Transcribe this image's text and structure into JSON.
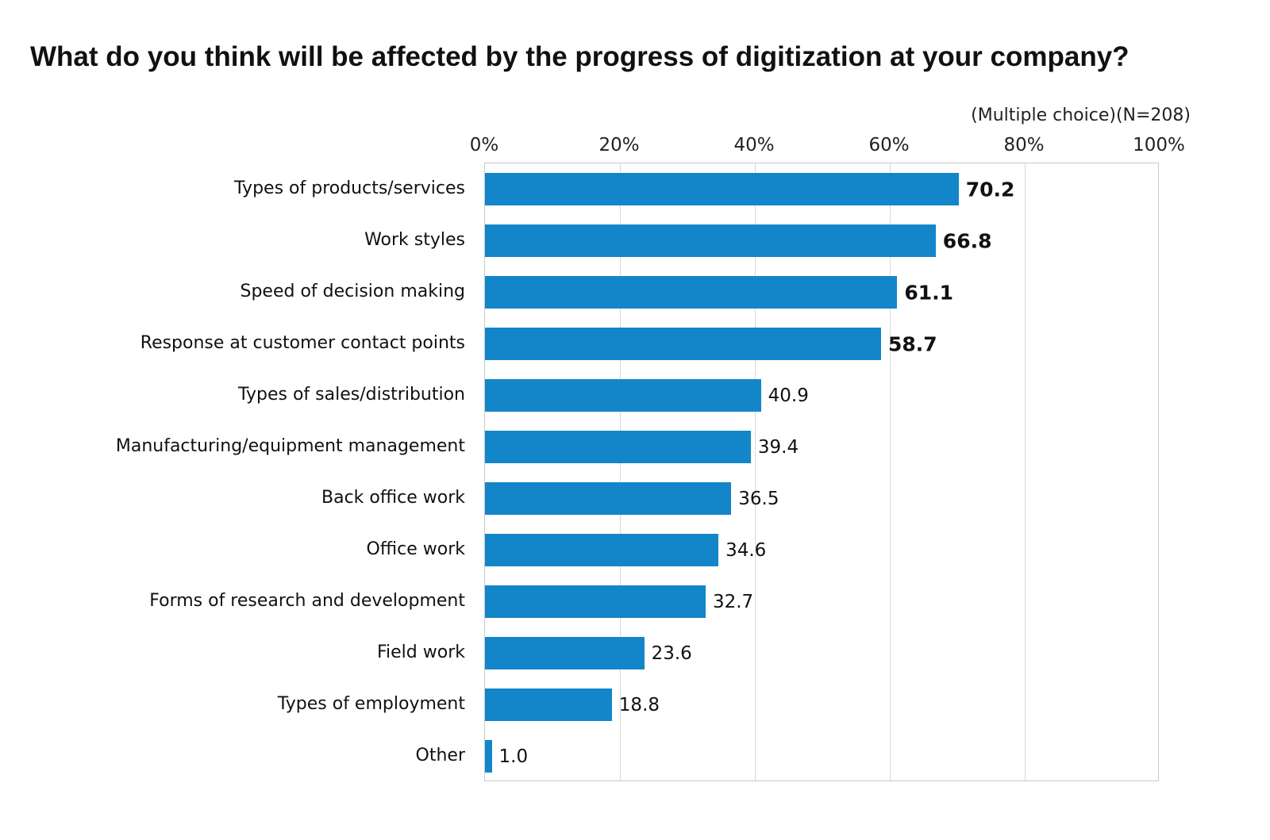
{
  "chart_data": {
    "type": "bar",
    "orientation": "horizontal",
    "title": "What do you think will be affected by the progress of digitization at your company?",
    "note": "(Multiple choice)(N=208)",
    "categories": [
      "Types of products/services",
      "Work styles",
      "Speed of decision making",
      "Response at customer contact points",
      "Types of sales/distribution",
      "Manufacturing/equipment management",
      "Back office work",
      "Office work",
      "Forms of research and development",
      "Field work",
      "Types of employment",
      "Other"
    ],
    "values": [
      70.2,
      66.8,
      61.1,
      58.7,
      40.9,
      39.4,
      36.5,
      34.6,
      32.7,
      23.6,
      18.8,
      1.0
    ],
    "value_labels": [
      "70.2",
      "66.8",
      "61.1",
      "58.7",
      "40.9",
      "39.4",
      "36.5",
      "34.6",
      "32.7",
      "23.6",
      "18.8",
      "1.0"
    ],
    "value_label_bold": [
      true,
      true,
      true,
      true,
      false,
      false,
      false,
      false,
      false,
      false,
      false,
      false
    ],
    "x_ticks": [
      "0%",
      "20%",
      "40%",
      "60%",
      "80%",
      "100%"
    ],
    "x_tick_values": [
      0,
      20,
      40,
      60,
      80,
      100
    ],
    "xlim": [
      0,
      100
    ],
    "grid": true,
    "bar_color": "#1286c9",
    "gridline_color": "#d8d8d8",
    "plot_border_color": "#c9c9c9"
  }
}
